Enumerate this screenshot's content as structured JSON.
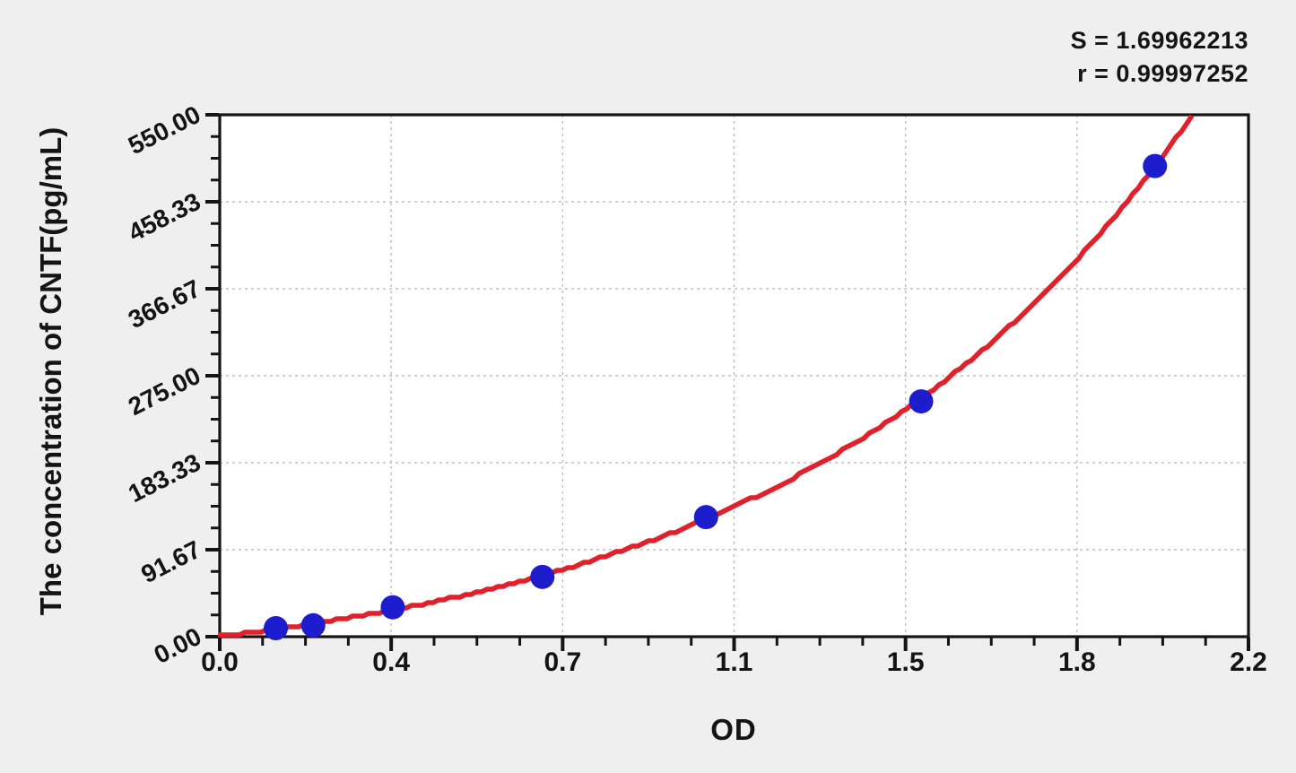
{
  "page": {
    "background_color": "#efefef"
  },
  "stats_panel": {
    "s_line": "S = 1.69962213",
    "r_line": "r = 0.99997252"
  },
  "chart_data": {
    "type": "scatter",
    "title": "",
    "xlabel": "OD",
    "ylabel": "The concentration of CNTF(pg/mL)",
    "xlim": [
      0,
      2.2
    ],
    "ylim": [
      0,
      550
    ],
    "x_tick_labels": [
      "0.0",
      "0.4",
      "0.7",
      "1.1",
      "1.5",
      "1.8",
      "2.2"
    ],
    "y_tick_labels": [
      "0.00",
      "91.67",
      "183.33",
      "275.00",
      "366.67",
      "458.33",
      "550.00"
    ],
    "major_divisions": 6,
    "minor_ticks_per_major_division": 4,
    "grid": "light dashed gridlines at every major tick, both axes",
    "legend_position": "none",
    "stats": {
      "S": 1.69962213,
      "r": 0.99997252
    },
    "points": [
      {
        "od": 0.12,
        "concentration": 9
      },
      {
        "od": 0.2,
        "concentration": 12
      },
      {
        "od": 0.37,
        "concentration": 31
      },
      {
        "od": 0.69,
        "concentration": 63
      },
      {
        "od": 1.04,
        "concentration": 126
      },
      {
        "od": 1.5,
        "concentration": 248
      },
      {
        "od": 2.0,
        "concentration": 496
      }
    ],
    "curve_fit": {
      "model": "concentration = A*(exp(k*od)-1)",
      "A": 51,
      "k": 1.186,
      "od_max": 2.088
    },
    "colors": {
      "curve": "#e0202a",
      "points": "#1d1dce",
      "grid": "#bfbfbf",
      "axis": "#141414",
      "text": "#141414",
      "plot_background": "#ffffff",
      "page_background": "#efefef"
    }
  }
}
